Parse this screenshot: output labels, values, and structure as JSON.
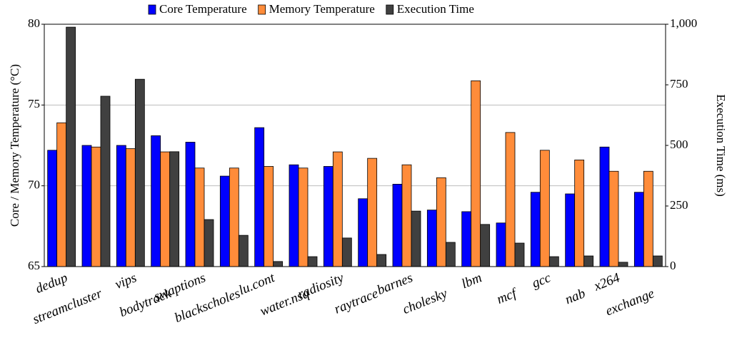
{
  "chart_data": {
    "type": "bar",
    "categories": [
      "dedup",
      "streamcluster",
      "vips",
      "bodytrack",
      "swaptions",
      "blackscholes",
      "lu.cont",
      "water.nsq",
      "radiosity",
      "raytrace",
      "barnes",
      "cholesky",
      "lbm",
      "mcf",
      "gcc",
      "nab",
      "x264",
      "exchange"
    ],
    "series": [
      {
        "name": "Core Temperature",
        "color": "#0000ff",
        "values": [
          72.2,
          72.5,
          72.5,
          73.1,
          72.7,
          70.6,
          73.6,
          71.3,
          71.2,
          69.2,
          70.1,
          68.5,
          68.4,
          67.7,
          69.6,
          69.5,
          72.4,
          69.6
        ]
      },
      {
        "name": "Memory Temperature",
        "color": "#ff8c3a",
        "values": [
          73.9,
          72.4,
          72.3,
          72.1,
          71.1,
          71.1,
          71.2,
          71.1,
          72.1,
          71.7,
          71.3,
          70.5,
          76.5,
          73.3,
          72.2,
          71.6,
          70.9,
          70.9
        ]
      },
      {
        "name": "Execution Time",
        "color": "#404040",
        "axis": "y2",
        "values": [
          988,
          703,
          773,
          474,
          194,
          129,
          21,
          41,
          118,
          50,
          229,
          100,
          174,
          97,
          41,
          44,
          18,
          44
        ]
      }
    ],
    "y_label": "Core / Memory Temperature (°C)",
    "y2_label": "Execution Time (ms)",
    "ylim": [
      65,
      80
    ],
    "yticks": [
      65,
      70,
      75,
      80
    ],
    "y2lim": [
      0,
      1000
    ],
    "y2ticks": [
      0,
      250,
      500,
      750,
      {
        "value": 1000,
        "label": "1,000"
      }
    ],
    "grid": true,
    "legend": "top"
  }
}
